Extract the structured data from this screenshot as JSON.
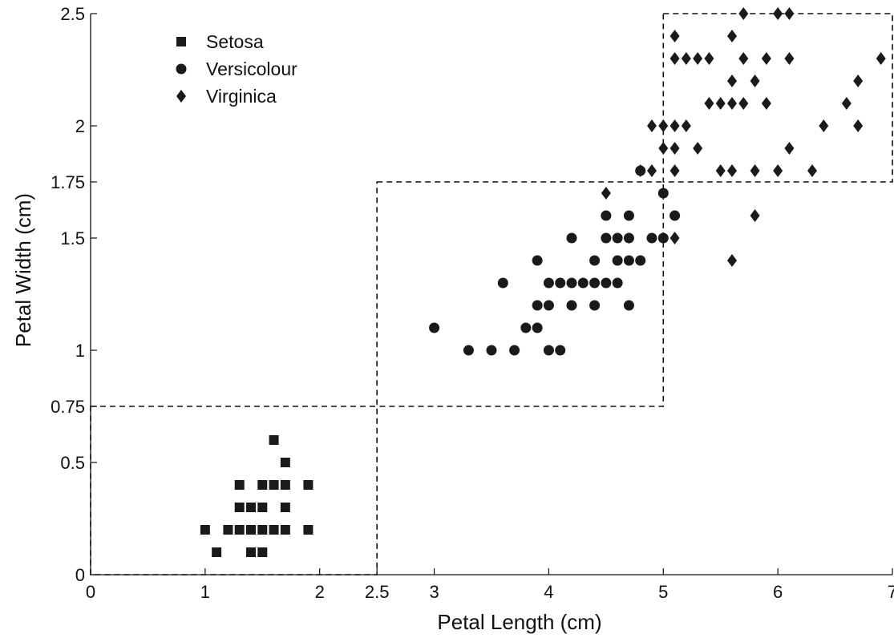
{
  "chart_data": {
    "type": "scatter",
    "title": "",
    "xlabel": "Petal Length (cm)",
    "ylabel": "Petal Width (cm)",
    "xlim": [
      0,
      7
    ],
    "ylim": [
      0,
      2.5
    ],
    "xticks": [
      0,
      1,
      2,
      2.5,
      3,
      4,
      5,
      6,
      7
    ],
    "xtick_labels": [
      "0",
      "1",
      "2",
      "2.5",
      "3",
      "4",
      "5",
      "6",
      "7"
    ],
    "yticks": [
      0,
      0.5,
      0.75,
      1,
      1.5,
      1.75,
      2,
      2.5
    ],
    "ytick_labels": [
      "0",
      "0.5",
      "0.75",
      "1",
      "1.5",
      "1.75",
      "2",
      "2.5"
    ],
    "grid": false,
    "legend_position": "top-left",
    "marker_color": "#1a1a1a",
    "series": [
      {
        "name": "Setosa",
        "marker": "square",
        "points": [
          [
            1.0,
            0.2
          ],
          [
            1.1,
            0.1
          ],
          [
            1.2,
            0.2
          ],
          [
            1.3,
            0.2
          ],
          [
            1.3,
            0.3
          ],
          [
            1.3,
            0.4
          ],
          [
            1.4,
            0.1
          ],
          [
            1.4,
            0.2
          ],
          [
            1.4,
            0.3
          ],
          [
            1.5,
            0.1
          ],
          [
            1.5,
            0.2
          ],
          [
            1.5,
            0.3
          ],
          [
            1.5,
            0.4
          ],
          [
            1.6,
            0.2
          ],
          [
            1.6,
            0.4
          ],
          [
            1.6,
            0.6
          ],
          [
            1.7,
            0.2
          ],
          [
            1.7,
            0.3
          ],
          [
            1.7,
            0.4
          ],
          [
            1.7,
            0.5
          ],
          [
            1.9,
            0.2
          ],
          [
            1.9,
            0.4
          ]
        ]
      },
      {
        "name": "Versicolour",
        "marker": "circle",
        "points": [
          [
            3.0,
            1.1
          ],
          [
            3.3,
            1.0
          ],
          [
            3.5,
            1.0
          ],
          [
            3.6,
            1.3
          ],
          [
            3.7,
            1.0
          ],
          [
            3.8,
            1.1
          ],
          [
            3.9,
            1.1
          ],
          [
            3.9,
            1.2
          ],
          [
            3.9,
            1.4
          ],
          [
            4.0,
            1.0
          ],
          [
            4.0,
            1.2
          ],
          [
            4.0,
            1.3
          ],
          [
            4.1,
            1.0
          ],
          [
            4.1,
            1.3
          ],
          [
            4.2,
            1.2
          ],
          [
            4.2,
            1.3
          ],
          [
            4.2,
            1.5
          ],
          [
            4.3,
            1.3
          ],
          [
            4.4,
            1.2
          ],
          [
            4.4,
            1.3
          ],
          [
            4.4,
            1.4
          ],
          [
            4.5,
            1.3
          ],
          [
            4.5,
            1.5
          ],
          [
            4.5,
            1.6
          ],
          [
            4.6,
            1.3
          ],
          [
            4.6,
            1.4
          ],
          [
            4.6,
            1.5
          ],
          [
            4.7,
            1.2
          ],
          [
            4.7,
            1.4
          ],
          [
            4.7,
            1.5
          ],
          [
            4.7,
            1.6
          ],
          [
            4.8,
            1.4
          ],
          [
            4.8,
            1.8
          ],
          [
            4.9,
            1.5
          ],
          [
            5.0,
            1.5
          ],
          [
            5.0,
            1.7
          ],
          [
            5.1,
            1.6
          ]
        ]
      },
      {
        "name": "Virginica",
        "marker": "diamond",
        "points": [
          [
            4.5,
            1.7
          ],
          [
            4.8,
            1.8
          ],
          [
            4.9,
            1.8
          ],
          [
            4.9,
            2.0
          ],
          [
            5.0,
            1.9
          ],
          [
            5.0,
            2.0
          ],
          [
            5.1,
            1.5
          ],
          [
            5.1,
            1.8
          ],
          [
            5.1,
            1.9
          ],
          [
            5.1,
            2.0
          ],
          [
            5.1,
            2.3
          ],
          [
            5.1,
            2.4
          ],
          [
            5.2,
            2.0
          ],
          [
            5.2,
            2.3
          ],
          [
            5.3,
            1.9
          ],
          [
            5.3,
            2.3
          ],
          [
            5.4,
            2.1
          ],
          [
            5.4,
            2.3
          ],
          [
            5.5,
            1.8
          ],
          [
            5.5,
            2.1
          ],
          [
            5.6,
            1.4
          ],
          [
            5.6,
            1.8
          ],
          [
            5.6,
            2.1
          ],
          [
            5.6,
            2.2
          ],
          [
            5.6,
            2.4
          ],
          [
            5.7,
            2.1
          ],
          [
            5.7,
            2.3
          ],
          [
            5.7,
            2.5
          ],
          [
            5.8,
            1.6
          ],
          [
            5.8,
            1.8
          ],
          [
            5.8,
            2.2
          ],
          [
            5.9,
            2.1
          ],
          [
            5.9,
            2.3
          ],
          [
            6.0,
            1.8
          ],
          [
            6.0,
            2.5
          ],
          [
            6.1,
            1.9
          ],
          [
            6.1,
            2.3
          ],
          [
            6.1,
            2.5
          ],
          [
            6.3,
            1.8
          ],
          [
            6.4,
            2.0
          ],
          [
            6.6,
            2.1
          ],
          [
            6.7,
            2.0
          ],
          [
            6.7,
            2.2
          ],
          [
            6.9,
            2.3
          ]
        ]
      }
    ],
    "regions": [
      {
        "x": [
          0,
          2.5
        ],
        "y": [
          0,
          0.75
        ]
      },
      {
        "x": [
          2.5,
          5
        ],
        "y": [
          0.75,
          1.75
        ]
      },
      {
        "x": [
          5,
          7
        ],
        "y": [
          1.75,
          2.5
        ]
      }
    ]
  }
}
